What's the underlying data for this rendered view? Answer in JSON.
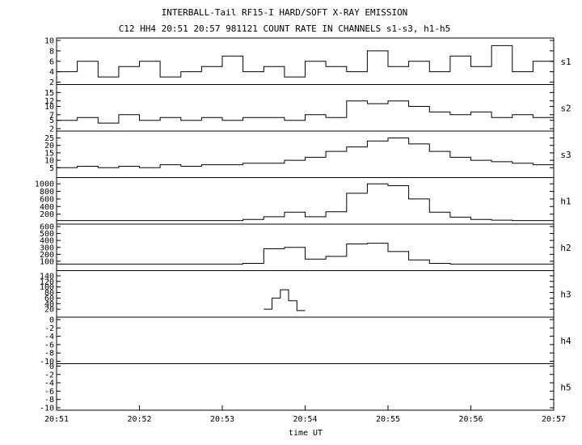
{
  "chart_data": {
    "type": "line",
    "title": "INTERBALL-Tail RF15-I HARD/SOFT X-RAY EMISSION",
    "subtitle": "C12 HH4 20:51 20:57 981121  COUNT RATE IN CHANNELS s1-s3, h1-h5",
    "xlabel": "time UT",
    "x_ticks": [
      "20:51",
      "20:52",
      "20:53",
      "20:54",
      "20:55",
      "20:56",
      "20:57"
    ],
    "panels": [
      {
        "name": "s1",
        "ylim": [
          2,
          10
        ],
        "yticks": [
          "2",
          "4",
          "6",
          "8",
          "10"
        ],
        "x": [
          0,
          0.25,
          0.5,
          0.75,
          1,
          1.25,
          1.5,
          1.75,
          2,
          2.25,
          2.5,
          2.75,
          3,
          3.25,
          3.5,
          3.75,
          4,
          4.25,
          4.5,
          4.75,
          5,
          5.25,
          5.5,
          5.75,
          6
        ],
        "values": [
          4,
          6,
          3,
          5,
          6,
          3,
          4,
          5,
          7,
          4,
          5,
          3,
          6,
          5,
          4,
          8,
          5,
          6,
          4,
          7,
          5,
          9,
          4,
          6,
          5
        ]
      },
      {
        "name": "s2",
        "ylim": [
          2,
          17
        ],
        "yticks": [
          "2",
          "5",
          "7",
          "10",
          "12",
          "15"
        ],
        "x": [
          0,
          0.25,
          0.5,
          0.75,
          1,
          1.25,
          1.5,
          1.75,
          2,
          2.25,
          2.5,
          2.75,
          3,
          3.25,
          3.5,
          3.75,
          4,
          4.25,
          4.5,
          4.75,
          5,
          5.25,
          5.5,
          5.75,
          6
        ],
        "values": [
          5,
          6,
          4,
          7,
          5,
          6,
          5,
          6,
          5,
          6,
          6,
          5,
          7,
          6,
          12,
          11,
          12,
          10,
          8,
          7,
          8,
          6,
          7,
          6,
          5
        ]
      },
      {
        "name": "s3",
        "ylim": [
          0,
          28
        ],
        "yticks": [
          "5",
          "10",
          "15",
          "20",
          "25"
        ],
        "x": [
          0,
          0.25,
          0.5,
          0.75,
          1,
          1.25,
          1.5,
          1.75,
          2,
          2.25,
          2.5,
          2.75,
          3,
          3.25,
          3.5,
          3.75,
          4,
          4.25,
          4.5,
          4.75,
          5,
          5.25,
          5.5,
          5.75,
          6
        ],
        "values": [
          5,
          6,
          5,
          6,
          5,
          7,
          6,
          7,
          7,
          8,
          8,
          10,
          12,
          16,
          19,
          23,
          25,
          21,
          16,
          12,
          10,
          9,
          8,
          7,
          7
        ]
      },
      {
        "name": "h1",
        "ylim": [
          0,
          1100
        ],
        "yticks": [
          "200",
          "400",
          "600",
          "800",
          "1000"
        ],
        "x": [
          0,
          0.25,
          0.5,
          0.75,
          1,
          1.25,
          1.5,
          1.75,
          2,
          2.25,
          2.5,
          2.75,
          3,
          3.25,
          3.5,
          3.75,
          4,
          4.25,
          4.5,
          4.75,
          5,
          5.25,
          5.5,
          5.75,
          6
        ],
        "values": [
          30,
          30,
          30,
          30,
          30,
          30,
          30,
          30,
          30,
          60,
          130,
          250,
          130,
          260,
          750,
          1000,
          950,
          600,
          250,
          120,
          60,
          40,
          30,
          30,
          30
        ]
      },
      {
        "name": "h2",
        "ylim": [
          0,
          600
        ],
        "yticks": [
          "100",
          "200",
          "300",
          "400",
          "500",
          "600"
        ],
        "x": [
          0,
          0.25,
          0.5,
          0.75,
          1,
          1.25,
          1.5,
          1.75,
          2,
          2.25,
          2.5,
          2.75,
          3,
          3.25,
          3.5,
          3.75,
          4,
          4.25,
          4.5,
          4.75,
          5,
          5.25,
          5.5,
          5.75,
          6
        ],
        "values": [
          60,
          60,
          60,
          60,
          60,
          60,
          60,
          60,
          60,
          70,
          280,
          300,
          130,
          170,
          350,
          360,
          240,
          120,
          70,
          60,
          60,
          60,
          60,
          60,
          60
        ]
      },
      {
        "name": "h3",
        "ylim": [
          0,
          150
        ],
        "yticks": [
          "20",
          "40",
          "60",
          "80",
          "100",
          "120",
          "140"
        ],
        "x": [
          2.5,
          2.6,
          2.7,
          2.8,
          2.9
        ],
        "values": [
          20,
          60,
          90,
          50,
          15
        ]
      },
      {
        "name": "h4",
        "ylim": [
          -10,
          0
        ],
        "yticks": [
          "-10",
          "-8",
          "-6",
          "-4",
          "-2",
          "0"
        ],
        "x": [],
        "values": []
      },
      {
        "name": "h5",
        "ylim": [
          -10,
          0
        ],
        "yticks": [
          "-10",
          "-8",
          "-6",
          "-4",
          "-2",
          "0"
        ],
        "x": [],
        "values": []
      }
    ],
    "grid": false,
    "legend": "none"
  }
}
